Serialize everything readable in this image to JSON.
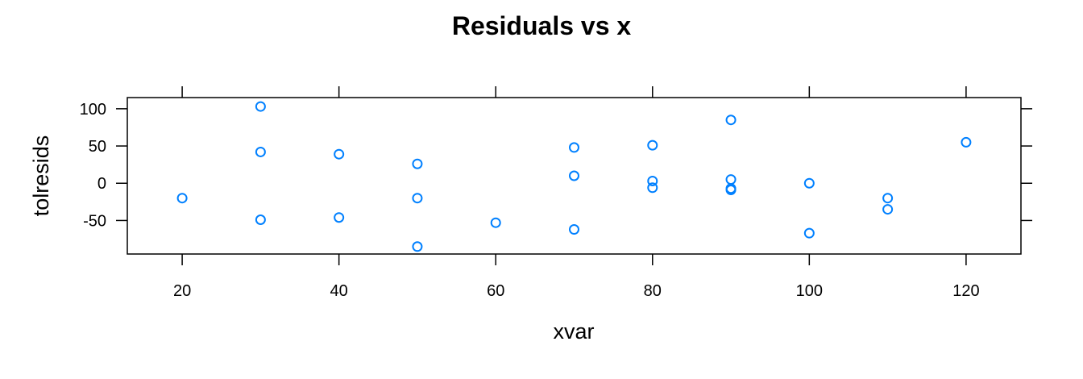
{
  "chart_data": {
    "type": "scatter",
    "title": "Residuals vs x",
    "xlabel": "xvar",
    "ylabel": "tolresids",
    "xlim": [
      13,
      127
    ],
    "ylim": [
      -95,
      115
    ],
    "x_ticks": [
      20,
      40,
      60,
      80,
      100,
      120
    ],
    "x_tick_labels": [
      "20",
      "40",
      "60",
      "80",
      "100",
      "120"
    ],
    "y_ticks": [
      -50,
      0,
      50,
      100
    ],
    "y_tick_labels": [
      "-50",
      "0",
      "50",
      "100"
    ],
    "grid": false,
    "point_color": "#0080ff",
    "series": [
      {
        "points": [
          {
            "x": 20,
            "y": -20
          },
          {
            "x": 30,
            "y": 103
          },
          {
            "x": 30,
            "y": 42
          },
          {
            "x": 30,
            "y": -49
          },
          {
            "x": 40,
            "y": 39
          },
          {
            "x": 40,
            "y": -46
          },
          {
            "x": 50,
            "y": 26
          },
          {
            "x": 50,
            "y": -20
          },
          {
            "x": 50,
            "y": -85
          },
          {
            "x": 60,
            "y": -53
          },
          {
            "x": 70,
            "y": 48
          },
          {
            "x": 70,
            "y": 10
          },
          {
            "x": 70,
            "y": -62
          },
          {
            "x": 80,
            "y": 51
          },
          {
            "x": 80,
            "y": 3
          },
          {
            "x": 80,
            "y": -6
          },
          {
            "x": 90,
            "y": 85
          },
          {
            "x": 90,
            "y": 5
          },
          {
            "x": 90,
            "y": -7
          },
          {
            "x": 90,
            "y": -9
          },
          {
            "x": 100,
            "y": 0
          },
          {
            "x": 100,
            "y": -67
          },
          {
            "x": 110,
            "y": -20
          },
          {
            "x": 110,
            "y": -35
          },
          {
            "x": 120,
            "y": 55
          }
        ]
      }
    ]
  }
}
